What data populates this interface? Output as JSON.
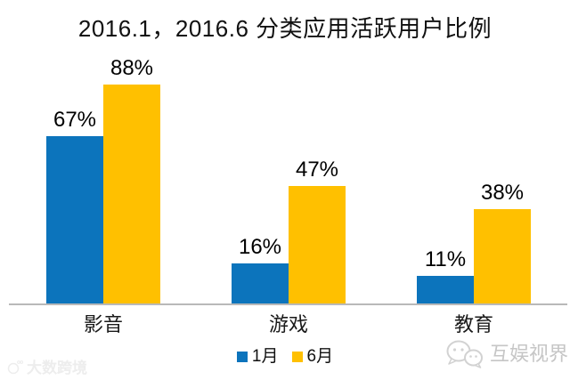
{
  "chart_data": {
    "type": "bar",
    "title": "2016.1，2016.6 分类应用活跃用户比例",
    "categories": [
      "影音",
      "游戏",
      "教育"
    ],
    "series": [
      {
        "name": "1月",
        "color": "#0C74BC",
        "values": [
          67,
          16,
          11
        ]
      },
      {
        "name": "6月",
        "color": "#FFC000",
        "values": [
          88,
          47,
          38
        ]
      }
    ],
    "value_suffix": "%",
    "ylim": [
      0,
      100
    ],
    "grid": false,
    "legend_position": "bottom",
    "axis_line_color": "#b9b9b9",
    "data_labels_shown": true
  },
  "watermarks": {
    "bottom_left": "大数跨境",
    "bottom_right": "互娱视界"
  }
}
